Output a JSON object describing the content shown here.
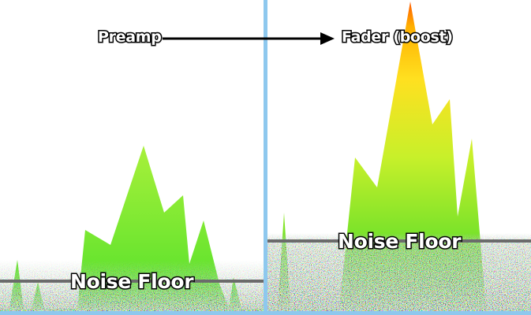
{
  "labels": {
    "preamp": "Preamp",
    "fader": "Fader (boost)",
    "noise_floor_left": "Noise Floor",
    "noise_floor_right": "Noise Floor"
  },
  "colors": {
    "background": "#ffffff",
    "divider": "#8ec8ee",
    "floor_line": "#6b6b6b",
    "arrow": "#000000",
    "signal_top": "#ff6a00",
    "signal_mid": "#ffd21a",
    "signal_low": "#c8f02a",
    "signal_base": "#5ee02a",
    "left_signal": "#a8f03a"
  }
}
